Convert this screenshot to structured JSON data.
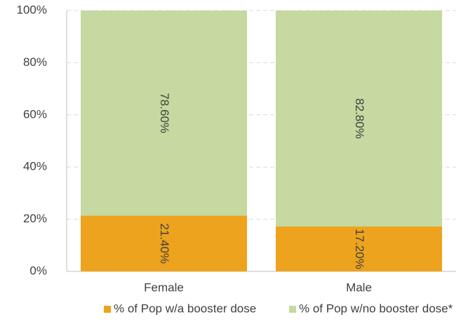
{
  "chart_data": {
    "type": "stacked_bar",
    "categories": [
      "Female",
      "Male"
    ],
    "series": [
      {
        "name": "% of Pop w/a booster dose",
        "color": "#eda31e",
        "values": [
          21.4,
          17.2
        ],
        "value_labels": [
          "21.40%",
          "17.20%"
        ]
      },
      {
        "name": "% of Pop w/no booster dose*",
        "color": "#c5d9a0",
        "values": [
          78.6,
          82.8
        ],
        "value_labels": [
          "78.60%",
          "82.80%"
        ]
      }
    ],
    "ylim": [
      0,
      100
    ],
    "yticks": [
      {
        "value": 0,
        "label": "0%"
      },
      {
        "value": 20,
        "label": "20%"
      },
      {
        "value": 40,
        "label": "40%"
      },
      {
        "value": 60,
        "label": "60%"
      },
      {
        "value": 80,
        "label": "80%"
      },
      {
        "value": 100,
        "label": "100%"
      }
    ],
    "grid": true,
    "legend": "bottom"
  }
}
